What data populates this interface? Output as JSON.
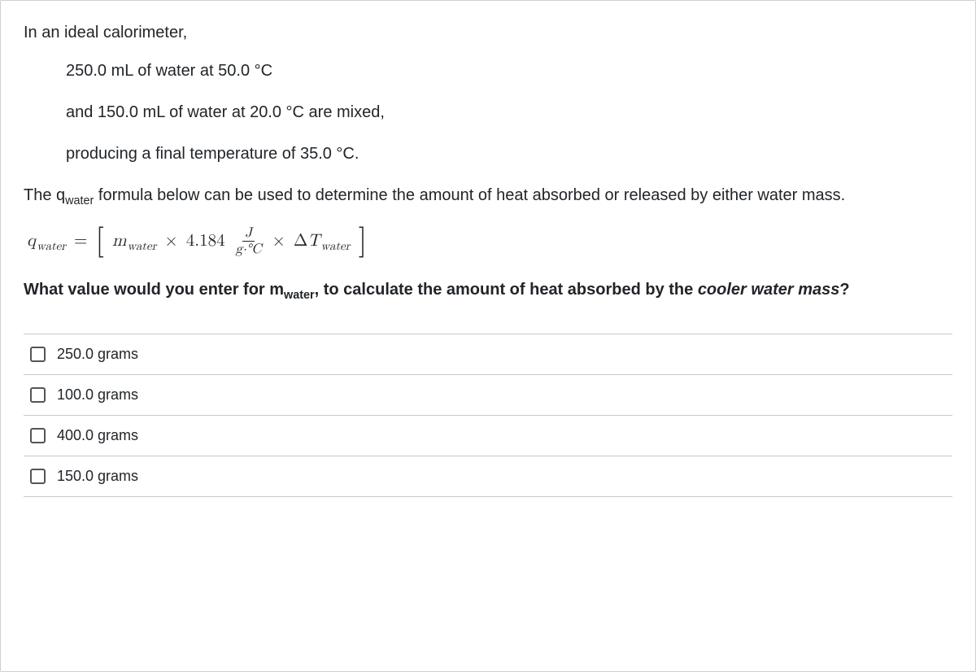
{
  "question": {
    "intro": "In an ideal calorimeter,",
    "conditions": [
      "250.0 mL of water at 50.0 °C",
      "and 150.0 mL of water at 20.0 °C are mixed,",
      "producing a final temperature of 35.0 °C."
    ],
    "para_before_sub": "The q",
    "para_sub": "water",
    "para_after_sub": " formula below can be used to determine the amount of heat absorbed or released by either water mass.",
    "prompt_before_sub": "What value would you enter for m",
    "prompt_sub": "water",
    "prompt_after_sub": ", to calculate the amount of heat absorbed by the ",
    "prompt_em1": "cooler water mass",
    "prompt_after_em": "?"
  },
  "formula": {
    "lhs_var": "q",
    "lhs_sub": "water",
    "eq": "=",
    "m_var": "m",
    "m_sub": "water",
    "times": "×",
    "constant": "4.184",
    "frac_num": "J",
    "frac_den": "g·°C",
    "delta": "Δ",
    "T_var": "T",
    "T_sub": "water"
  },
  "options": [
    {
      "label": "250.0 grams",
      "checked": false
    },
    {
      "label": "100.0 grams",
      "checked": false
    },
    {
      "label": "400.0 grams",
      "checked": false
    },
    {
      "label": "150.0 grams",
      "checked": false
    }
  ],
  "colors": {
    "text": "#212529",
    "border": "#d0d0d0",
    "option_border": "#c9c9c9",
    "checkbox_border": "#555555",
    "background": "#ffffff"
  }
}
